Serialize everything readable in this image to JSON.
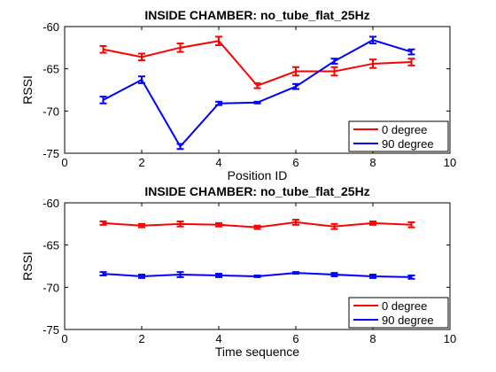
{
  "chart_data": [
    {
      "type": "line",
      "title": "INSIDE CHAMBER: no_tube_flat_25Hz",
      "xlabel": "Position ID",
      "ylabel": "RSSI",
      "xlim": [
        0,
        10
      ],
      "ylim": [
        -75,
        -60
      ],
      "xticks": [
        "0",
        "2",
        "4",
        "6",
        "8",
        "10"
      ],
      "yticks": [
        "-60",
        "-65",
        "-70",
        "-75"
      ],
      "grid": false,
      "legend_position": "bottom-right",
      "x": [
        1,
        2,
        3,
        4,
        5,
        6,
        7,
        8,
        9
      ],
      "series": [
        {
          "name": "0 degree",
          "color": "#ff0000",
          "values": [
            -62.7,
            -63.6,
            -62.5,
            -61.7,
            -67.0,
            -65.3,
            -65.3,
            -64.4,
            -64.2
          ],
          "errors": [
            0.4,
            0.4,
            0.5,
            0.5,
            0.3,
            0.5,
            0.5,
            0.5,
            0.4
          ]
        },
        {
          "name": "90 degree",
          "color": "#0000ff",
          "values": [
            -68.7,
            -66.3,
            -74.2,
            -69.1,
            -69.0,
            -67.1,
            -64.1,
            -61.6,
            -63.0
          ],
          "errors": [
            0.4,
            0.4,
            0.3,
            0.2,
            0.1,
            0.3,
            0.3,
            0.4,
            0.3
          ]
        }
      ]
    },
    {
      "type": "line",
      "title": "INSIDE CHAMBER: no_tube_flat_25Hz",
      "xlabel": "Time sequence",
      "ylabel": "RSSI",
      "xlim": [
        0,
        10
      ],
      "ylim": [
        -75,
        -60
      ],
      "xticks": [
        "0",
        "2",
        "4",
        "6",
        "8",
        "10"
      ],
      "yticks": [
        "-60",
        "-65",
        "-70",
        "-75"
      ],
      "grid": false,
      "legend_position": "bottom-right",
      "x": [
        1,
        2,
        3,
        4,
        5,
        6,
        7,
        8,
        9
      ],
      "series": [
        {
          "name": "0 degree",
          "color": "#ff0000",
          "values": [
            -62.4,
            -62.7,
            -62.5,
            -62.6,
            -62.9,
            -62.3,
            -62.8,
            -62.4,
            -62.6
          ],
          "errors": [
            0.2,
            0.2,
            0.3,
            0.2,
            0.2,
            0.3,
            0.3,
            0.2,
            0.3
          ]
        },
        {
          "name": "90 degree",
          "color": "#0000ff",
          "values": [
            -68.4,
            -68.7,
            -68.5,
            -68.6,
            -68.7,
            -68.3,
            -68.5,
            -68.7,
            -68.8
          ],
          "errors": [
            0.2,
            0.2,
            0.3,
            0.2,
            0.1,
            0.1,
            0.2,
            0.2,
            0.2
          ]
        }
      ]
    }
  ]
}
